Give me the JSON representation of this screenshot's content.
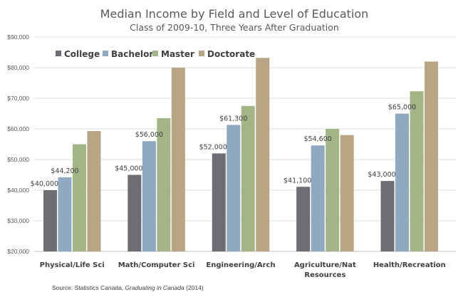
{
  "chart_data": {
    "type": "bar",
    "title": "Median Income by Field and Level of Education",
    "subtitle": "Class of 2009-10, Three Years After Graduation",
    "source_prefix": "Source: Statistics Canada, ",
    "source_italic": "Graduating in Canada",
    "source_suffix": " (2014)",
    "categories": [
      [
        "Physical/Life Sci"
      ],
      [
        "Math/Computer Sci"
      ],
      [
        "Engineering/Arch"
      ],
      [
        "Agriculture/Nat",
        "Resources"
      ],
      [
        "Health/Recreation"
      ]
    ],
    "ylim": [
      20000,
      90000
    ],
    "yticks": [
      20000,
      30000,
      40000,
      50000,
      60000,
      70000,
      80000,
      90000
    ],
    "ytick_labels": [
      "$20,000",
      "$30,000",
      "$40,000",
      "$50,000",
      "$60,000",
      "$70,000",
      "$80,000",
      "$90,000"
    ],
    "grid": true,
    "legend_position": "top-left",
    "series": [
      {
        "name": "College",
        "color": "#6e6d72",
        "values": [
          40000,
          45000,
          52000,
          41100,
          43000
        ],
        "labels": [
          "$40,000",
          "$45,000",
          "$52,000",
          "$41,100",
          "$43,000"
        ]
      },
      {
        "name": "Bachelor",
        "color": "#8ea9c1",
        "values": [
          44200,
          56000,
          61300,
          54600,
          65000
        ],
        "labels": [
          "$44,200",
          "$56,000",
          "$61,300",
          "$54,600",
          "$65,000"
        ]
      },
      {
        "name": "Master",
        "color": "#a2b585",
        "values": [
          55000,
          63500,
          67500,
          60000,
          72300
        ],
        "labels": [
          null,
          null,
          null,
          null,
          null
        ]
      },
      {
        "name": "Doctorate",
        "color": "#b9a483",
        "values": [
          59300,
          80000,
          83200,
          58000,
          82000
        ],
        "labels": [
          null,
          null,
          null,
          null,
          null
        ]
      }
    ]
  }
}
